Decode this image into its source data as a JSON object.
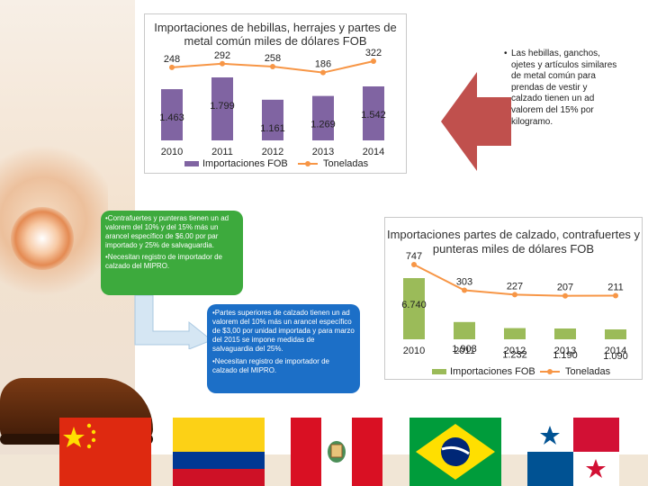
{
  "colors": {
    "bar_fob": "#8064a2",
    "line_tons": "#f79646",
    "bar_fob_2": "#9bbb59",
    "box_green": "#3daa3d",
    "box_blue": "#1c6fc7"
  },
  "chart_data": [
    {
      "type": "bar",
      "title": "Importaciones de hebillas, herrajes y partes de metal común miles de dólares FOB",
      "categories": [
        "2010",
        "2011",
        "2012",
        "2013",
        "2014"
      ],
      "series": [
        {
          "name": "Importaciones FOB",
          "type": "bar",
          "values": [
            1463,
            1799,
            1161,
            1269,
            1542
          ],
          "labels": [
            "1.463",
            "1.799",
            "1.161",
            "1.269",
            "1.542"
          ]
        },
        {
          "name": "Toneladas",
          "type": "line",
          "values": [
            248,
            292,
            258,
            186,
            322
          ],
          "labels": [
            "248",
            "292",
            "258",
            "186",
            "322"
          ]
        }
      ],
      "legend": "bottom",
      "grid": false
    },
    {
      "type": "bar",
      "title": "Importaciones partes de calzado, contrafuertes y punteras miles de dólares FOB",
      "categories": [
        "2010",
        "2011",
        "2012",
        "2013",
        "2014"
      ],
      "series": [
        {
          "name": "Importaciones FOB",
          "type": "bar",
          "values": [
            6740,
            1903,
            1232,
            1190,
            1090
          ],
          "labels": [
            "6.740",
            "1.903",
            "1.232",
            "1.190",
            "1.090"
          ]
        },
        {
          "name": "Toneladas",
          "type": "line",
          "values": [
            747,
            303,
            227,
            207,
            211
          ],
          "labels": [
            "747",
            "303",
            "227",
            "207",
            "211"
          ]
        }
      ],
      "legend": "bottom",
      "grid": false
    }
  ],
  "note_top": "Las hebillas, ganchos, ojetes y artículos similares de metal común para prendas de vestir y calzado tienen un ad valorem del 15% por kilogramo.",
  "box_green": {
    "p1": "•Contrafuertes y punteras tienen un ad valorem del 10% y del 15% más un arancel específico de $6,00 por par importado y 25% de salvaguardia.",
    "p2": "•Necesitan registro de importador de calzado del MIPRO."
  },
  "box_blue": {
    "p1": "•Partes superiores de calzado tienen un ad valorem del 10% más un arancel específico de $3,00 por unidad importada y para marzo del 2015 se impone medidas de salvaguardia del 25%.",
    "p2": "•Necesitan registro de importador de calzado del MIPRO."
  },
  "flags": [
    "china-flag",
    "colombia-flag",
    "peru-flag",
    "brazil-flag",
    "panama-flag"
  ]
}
